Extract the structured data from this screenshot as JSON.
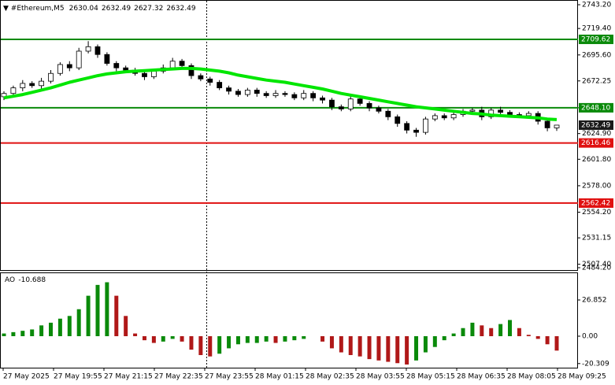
{
  "chart_data": {
    "type": "candlestick",
    "title": "#Ethereum,M5",
    "header_ohlc": [
      2630.04,
      2632.49,
      2627.32,
      2632.49
    ],
    "open": [
      2658,
      2661,
      2666,
      2670,
      2668,
      2672,
      2679,
      2687,
      2684,
      2699,
      2703,
      2696,
      2688,
      2684,
      2682,
      2679,
      2676,
      2681,
      2684,
      2690,
      2686,
      2677,
      2674,
      2671,
      2666,
      2663,
      2660,
      2664,
      2661,
      2659,
      2661,
      2660,
      2657,
      2661,
      2657,
      2655,
      2649,
      2647,
      2656,
      2652,
      2648,
      2645,
      2640,
      2634,
      2628,
      2626,
      2638,
      2641,
      2639,
      2642,
      2645,
      2646,
      2640,
      2646,
      2644,
      2642,
      2641,
      2643,
      2636,
      2630.04
    ],
    "high": [
      2663,
      2668,
      2673,
      2672,
      2675,
      2682,
      2689,
      2690,
      2702,
      2708,
      2705,
      2698,
      2690,
      2686,
      2684,
      2681,
      2683,
      2687,
      2693,
      2692,
      2688,
      2679,
      2676,
      2673,
      2668,
      2665,
      2666,
      2666,
      2663,
      2664,
      2663,
      2662,
      2664,
      2663,
      2659,
      2657,
      2651,
      2659,
      2658,
      2654,
      2650,
      2647,
      2642,
      2636,
      2630,
      2640,
      2643,
      2643,
      2645,
      2647,
      2648,
      2649,
      2648,
      2649,
      2646,
      2644,
      2645,
      2645,
      2638,
      2632.49
    ],
    "low": [
      2655,
      2659,
      2663,
      2666,
      2665,
      2670,
      2677,
      2681,
      2682,
      2697,
      2693,
      2686,
      2681,
      2680,
      2677,
      2673,
      2674,
      2679,
      2682,
      2683,
      2674,
      2672,
      2668,
      2664,
      2660,
      2658,
      2658,
      2658,
      2657,
      2657,
      2658,
      2655,
      2655,
      2654,
      2652,
      2646,
      2645,
      2645,
      2650,
      2645,
      2643,
      2637,
      2631,
      2625,
      2622,
      2624,
      2636,
      2637,
      2637,
      2640,
      2643,
      2637,
      2638,
      2641,
      2640,
      2639,
      2639,
      2633,
      2627,
      2627.32
    ],
    "close": [
      2661,
      2666,
      2670,
      2668,
      2672,
      2679,
      2687,
      2684,
      2699,
      2703,
      2696,
      2688,
      2684,
      2682,
      2679,
      2676,
      2681,
      2684,
      2690,
      2686,
      2677,
      2674,
      2671,
      2666,
      2663,
      2660,
      2664,
      2661,
      2659,
      2661,
      2660,
      2657,
      2661,
      2657,
      2655,
      2649,
      2647,
      2656,
      2652,
      2648,
      2645,
      2640,
      2634,
      2628,
      2626,
      2638,
      2641,
      2639,
      2642,
      2645,
      2646,
      2640,
      2646,
      2644,
      2642,
      2641,
      2643,
      2636,
      2630.04,
      2632.49
    ],
    "ylim": [
      2502.2,
      2745
    ],
    "yticks": [
      {
        "value": 2743.2,
        "label": "2743.20"
      },
      {
        "value": 2719.4,
        "label": "2719.40"
      },
      {
        "value": 2695.6,
        "label": "2695.60"
      },
      2672.25,
      {
        "value": 2648.1,
        "label": "2648.10"
      },
      {
        "value": 2624.9,
        "label": "2624.90"
      },
      {
        "value": 2601.8,
        "label": "2601.80"
      },
      {
        "value": 2578,
        "label": "2578.00"
      },
      {
        "value": 2554.2,
        "label": "2554.20"
      },
      2531.15,
      {
        "value": 2507.4,
        "label": "2507.40"
      },
      {
        "value": 2484.2,
        "label": "2484.20"
      }
    ],
    "ma": {
      "color": "#00e600",
      "values": [
        2657,
        2658.5,
        2660,
        2662,
        2664,
        2666,
        2668.5,
        2671,
        2673,
        2675,
        2677,
        2678.5,
        2679.5,
        2680.5,
        2681,
        2681.5,
        2682,
        2682.5,
        2683,
        2683.5,
        2683.5,
        2683,
        2682,
        2681,
        2679.5,
        2677.5,
        2676,
        2674.5,
        2673,
        2672,
        2671,
        2669.5,
        2668,
        2666.5,
        2665,
        2663,
        2661,
        2659.5,
        2658,
        2656.5,
        2655,
        2653.5,
        2652,
        2650.5,
        2649,
        2648,
        2647,
        2646,
        2645,
        2644,
        2643,
        2642.5,
        2641.5,
        2641,
        2640.5,
        2640,
        2639.5,
        2639,
        2638,
        2637.5
      ]
    },
    "levels": [
      {
        "value": 2709.62,
        "color": "#0a8a0a"
      },
      {
        "value": 2648.1,
        "label": "2648.10",
        "color": "#0a8a0a"
      },
      {
        "value": 2616.46,
        "color": "#e01010"
      },
      {
        "value": 2562.42,
        "color": "#e01010"
      }
    ],
    "current_price": 2632.49,
    "x_labels": [
      "27 May 2025",
      "27 May 19:55",
      "27 May 21:15",
      "27 May 22:35",
      "27 May 23:55",
      "28 May 01:15",
      "28 May 02:35",
      "28 May 03:55",
      "28 May 05:15",
      "28 May 06:35",
      "28 May 08:05",
      "28 May 09:25"
    ],
    "indicator": {
      "type": "bar",
      "name": "AO",
      "value": -10.688,
      "up_color": "#0a8a0a",
      "down_color": "#b01818",
      "values": [
        2,
        3,
        4,
        5,
        8,
        10,
        13,
        15,
        20,
        30,
        38,
        40,
        30,
        15,
        2,
        -3,
        -5,
        -4,
        -2,
        -4,
        -10,
        -14,
        -15,
        -13,
        -9,
        -6,
        -5,
        -5,
        -4,
        -5,
        -4,
        -3,
        -2,
        0,
        -4,
        -9,
        -12,
        -14,
        -15,
        -17,
        -18,
        -19,
        -20,
        -21,
        -18,
        -12,
        -8,
        -3,
        2,
        6,
        10,
        8,
        6,
        9,
        12,
        6,
        1,
        -2,
        -6,
        -10.688
      ],
      "ylim": [
        -23.35,
        46.7
      ],
      "yticks": [
        26.852,
        {
          "value": 0,
          "label": "0.00"
        },
        -20.309
      ]
    }
  }
}
